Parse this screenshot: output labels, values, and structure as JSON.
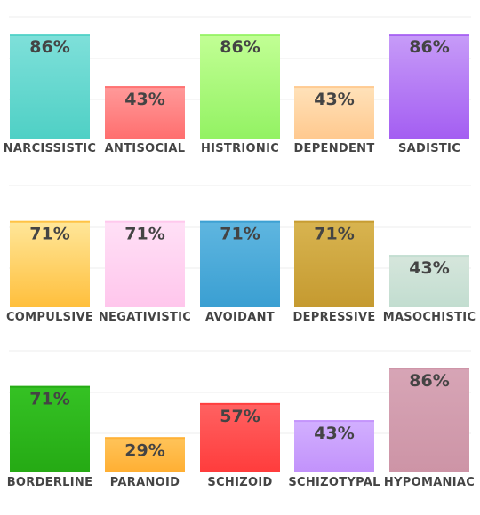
{
  "chart_data": [
    {
      "type": "bar",
      "ylim": [
        0,
        100
      ],
      "grid": true,
      "categories": [
        "NARCISSISTIC",
        "ANTISOCIAL",
        "HISTRIONIC",
        "DEPENDENT",
        "SADISTIC"
      ],
      "values": [
        86,
        43,
        86,
        43,
        86
      ],
      "value_labels": [
        "86%",
        "43%",
        "86%",
        "43%",
        "86%"
      ],
      "colors": [
        [
          "#7fe0da",
          "#4fd0c5"
        ],
        [
          "#ff9a9a",
          "#ff6f6f"
        ],
        [
          "#c2ff95",
          "#93f263"
        ],
        [
          "#ffe2ba",
          "#ffc98f"
        ],
        [
          "#c79cf8",
          "#a45ef2"
        ]
      ]
    },
    {
      "type": "bar",
      "ylim": [
        0,
        100
      ],
      "grid": true,
      "categories": [
        "COMPULSIVE",
        "NEGATIVISTIC",
        "AVOIDANT",
        "DEPRESSIVE",
        "MASOCHISTIC"
      ],
      "values": [
        71,
        71,
        71,
        71,
        43
      ],
      "value_labels": [
        "71%",
        "71%",
        "71%",
        "71%",
        "43%"
      ],
      "colors": [
        [
          "#ffe79a",
          "#ffbf3c"
        ],
        [
          "#ffe0f6",
          "#ffc6ec"
        ],
        [
          "#5fb6e0",
          "#3a9fd2"
        ],
        [
          "#d8b450",
          "#c59a30"
        ],
        [
          "#d6e6dc",
          "#c2ddd0"
        ]
      ]
    },
    {
      "type": "bar",
      "ylim": [
        0,
        100
      ],
      "grid": true,
      "categories": [
        "BORDERLINE",
        "PARANOID",
        "SCHIZOID",
        "SCHIZOTYPAL",
        "HYPOMANIAC"
      ],
      "values": [
        71,
        29,
        57,
        43,
        86
      ],
      "value_labels": [
        "71%",
        "29%",
        "57%",
        "43%",
        "86%"
      ],
      "colors": [
        [
          "#35c224",
          "#25aa14"
        ],
        [
          "#ffc45a",
          "#ffaf33"
        ],
        [
          "#ff6262",
          "#ff3c3c"
        ],
        [
          "#d2b0ff",
          "#c292fb"
        ],
        [
          "#d7a5b6",
          "#cd94a6"
        ]
      ]
    }
  ]
}
